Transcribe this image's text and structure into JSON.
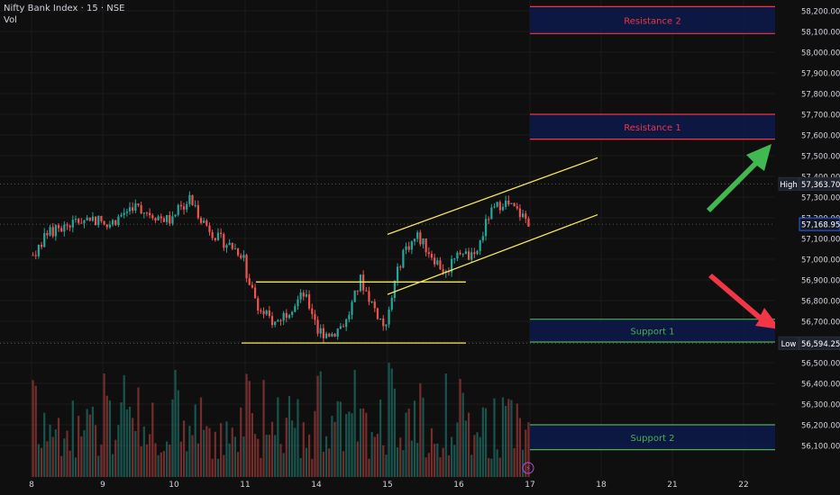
{
  "header": {
    "title": "Nifty Bank Index · 15 · NSE",
    "vol_label": "Vol"
  },
  "colors": {
    "background": "#0f0f0f",
    "up": "#26a69a",
    "down": "#ef5350",
    "resistance": "#f23645",
    "support": "#4caf50",
    "channel": "#f5e663",
    "zone_fill": "#0c1a4a",
    "arrow_up": "#3fb950",
    "arrow_down": "#f23645",
    "axis_text": "#d1d4dc"
  },
  "chart_data": {
    "type": "candlestick",
    "y_axis": {
      "ylim": [
        56050,
        58260
      ],
      "ticks": [
        "58,200.00",
        "58,100.00",
        "58,000.00",
        "57,900.00",
        "57,800.00",
        "57,700.00",
        "57,600.00",
        "57,500.00",
        "57,400.00",
        "57,300.00",
        "57,200.00",
        "57,100.00",
        "57,000.00",
        "56,900.00",
        "56,800.00",
        "56,700.00",
        "56,600.00",
        "56,500.00",
        "56,400.00",
        "56,300.00",
        "56,200.00",
        "56,100.00"
      ],
      "tick_values": [
        58200,
        58100,
        58000,
        57900,
        57800,
        57700,
        57600,
        57500,
        57400,
        57300,
        57200,
        57100,
        57000,
        56900,
        56800,
        56700,
        56600,
        56500,
        56400,
        56300,
        56200,
        56100
      ]
    },
    "x_axis": {
      "ticks": [
        "8",
        "9",
        "10",
        "11",
        "14",
        "15",
        "16",
        "17",
        "18",
        "21",
        "22"
      ],
      "tick_index": [
        0,
        1,
        2,
        3,
        4,
        5,
        6,
        7,
        8,
        9,
        10
      ]
    },
    "price_tags": [
      {
        "label": "High",
        "value": 57363.7,
        "text": "57,363.70"
      },
      {
        "label": "",
        "value": 57168.95,
        "text": "57,168.95",
        "current": true
      },
      {
        "label": "Low",
        "value": 56594.25,
        "text": "56,594.25"
      }
    ],
    "zones": [
      {
        "label": "Resistance 2",
        "top": 58220,
        "bottom": 58090,
        "kind": "resistance"
      },
      {
        "label": "Resistance 1",
        "top": 57700,
        "bottom": 57580,
        "kind": "resistance"
      },
      {
        "label": "Support 1",
        "top": 56710,
        "bottom": 56600,
        "kind": "support"
      },
      {
        "label": "Support 2",
        "top": 56200,
        "bottom": 56080,
        "kind": "support"
      }
    ],
    "day_closes": [
      [
        57020,
        57120,
        57150,
        57180,
        57200,
        57180
      ],
      [
        57150,
        57200,
        57260,
        57230,
        57200,
        57180
      ],
      [
        57220,
        57290,
        57180,
        57100,
        57060,
        57010
      ],
      [
        56910,
        56750,
        56690,
        56760,
        56830,
        56690
      ],
      [
        56650,
        56640,
        56700,
        56900,
        56760,
        56630
      ],
      [
        56780,
        57040,
        57110,
        57020,
        56930,
        57080
      ],
      [
        57030,
        57000,
        57210,
        57280,
        57230,
        57170
      ]
    ],
    "trendlines": [
      {
        "name": "channel-upper",
        "points": [
          [
            5.0,
            57120
          ],
          [
            7.95,
            57490
          ]
        ]
      },
      {
        "name": "channel-lower",
        "points": [
          [
            5.0,
            56830
          ],
          [
            7.95,
            57215
          ]
        ]
      },
      {
        "name": "range-top",
        "points": [
          [
            3.15,
            56890
          ],
          [
            6.1,
            56890
          ]
        ]
      },
      {
        "name": "range-bottom",
        "points": [
          [
            2.95,
            56595
          ],
          [
            6.1,
            56595
          ]
        ]
      }
    ],
    "grid": true
  }
}
